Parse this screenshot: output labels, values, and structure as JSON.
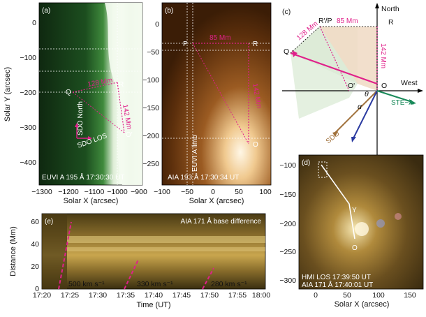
{
  "panels": {
    "a": {
      "label": "(a)",
      "caption": "EUVI A 195 Å 17:30:30 UT",
      "point_q": "Q",
      "point_r": "R",
      "point_o": "O'",
      "dist_128": "128 Mm",
      "dist_142": "142 Mm",
      "sdo_north": "SDO North",
      "sdo_los": "SDO LOS",
      "ylabel": "Solar Y (arcsec)",
      "xlabel": "Solar X (arcsec)",
      "xticks": [
        "−1300",
        "−1200",
        "−1100",
        "−1000",
        "−900"
      ],
      "yticks": [
        "0",
        "−100",
        "−200",
        "−300",
        "−400"
      ]
    },
    "b": {
      "label": "(b)",
      "caption": "AIA 193 Å 17:30:34 UT",
      "point_p": "P",
      "point_r": "R",
      "point_o": "O",
      "dist_85": "85 Mm",
      "dist_142": "142 Mm",
      "limb": "EUVI A limb",
      "xlabel": "Solar X (arcsec)",
      "xticks": [
        "−100",
        "−50",
        "0",
        "50",
        "100"
      ],
      "yticks": [
        "0",
        "−50",
        "−100",
        "−150",
        "−200",
        "−250"
      ]
    },
    "c": {
      "label": "(c)",
      "north": "North",
      "west": "West",
      "r_p": "R'/P",
      "r": "R",
      "q": "Q",
      "o": "O",
      "o_prime": "O'",
      "dist_128": "128 Mm",
      "dist_85": "85 Mm",
      "dist_142": "142 Mm",
      "ste_a": "STE−A",
      "sdo": "SDO",
      "alpha": "α",
      "theta": "θ"
    },
    "d": {
      "label": "(d)",
      "point_y": "Y",
      "point_o": "O",
      "caption1": "HMI LOS 17:39:50 UT",
      "caption2": "AIA 171 Å 17:40:01 UT",
      "xlabel": "Solar X (arcsec)",
      "xticks": [
        "0",
        "50",
        "100",
        "150"
      ],
      "yticks": [
        "−100",
        "−150",
        "−200",
        "−250",
        "−300"
      ]
    },
    "e": {
      "label": "(e)",
      "title": "AIA 171 Å base difference",
      "ylabel": "Distance (Mm)",
      "xlabel": "Time (UT)",
      "speed1": "500 km s⁻¹",
      "speed2": "330 km s⁻¹",
      "speed3": "280 km s⁻¹",
      "xticks": [
        "17:20",
        "17:25",
        "17:30",
        "17:35",
        "17:40",
        "17:45",
        "17:50",
        "17:55",
        "18:00"
      ],
      "yticks": [
        "0",
        "20",
        "40",
        "60"
      ]
    }
  },
  "colors": {
    "magenta": "#e0208a",
    "euvi_green": "#1f5a22",
    "aia_brown": "#6b3a12",
    "sdo_arrow": "#a0703a",
    "los_arrow": "#2a3aa0",
    "ste_arrow": "#1a8a5a"
  }
}
